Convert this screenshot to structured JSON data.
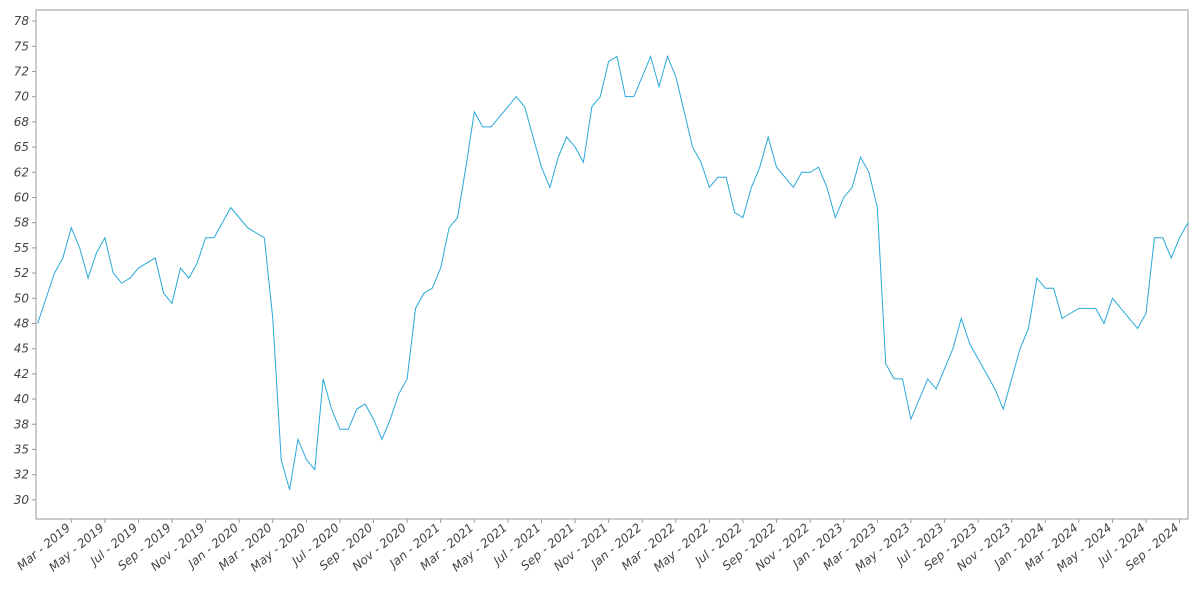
{
  "chart_data": {
    "type": "line",
    "x": [
      0,
      0.5,
      1,
      1.5,
      2,
      2.5,
      3,
      3.5,
      4,
      4.5,
      5,
      5.5,
      6,
      6.5,
      7,
      7.5,
      8,
      8.5,
      9,
      9.5,
      10,
      10.5,
      11,
      11.5,
      12,
      12.5,
      13,
      13.5,
      14,
      14.5,
      15,
      15.5,
      16,
      16.5,
      17,
      17.5,
      18,
      18.5,
      19,
      19.5,
      20,
      20.5,
      21,
      21.5,
      22,
      22.5,
      23,
      23.5,
      24,
      24.5,
      25,
      25.5,
      26,
      26.5,
      27,
      27.5,
      28,
      28.5,
      29,
      29.5,
      30,
      30.5,
      31,
      31.5,
      32,
      32.5,
      33,
      33.5,
      34,
      34.5,
      35,
      35.5,
      36,
      36.5,
      37,
      37.5,
      38,
      38.5,
      39,
      39.5,
      40,
      40.5,
      41,
      41.5,
      42,
      42.5,
      43,
      43.5,
      44,
      44.5,
      45,
      45.5,
      46,
      46.5,
      47,
      47.5,
      48,
      48.5,
      49,
      49.5,
      50,
      50.5,
      51,
      51.5,
      52,
      52.5,
      53,
      53.5,
      54,
      54.5,
      55,
      55.5,
      56,
      56.5,
      57,
      57.5,
      58,
      58.5,
      59,
      59.5,
      60,
      60.5,
      61,
      61.5,
      62,
      62.5,
      63,
      63.5,
      64,
      64.5,
      65,
      65.5,
      66,
      66.5,
      67,
      67.5,
      68,
      68.5
    ],
    "series": [
      {
        "color": "#29a8d8",
        "values": [
          47.5,
          50,
          52.5,
          54,
          57,
          55,
          52,
          54.5,
          56,
          52.5,
          51.5,
          52,
          53,
          53.5,
          54,
          50.5,
          49.5,
          53,
          52,
          53.5,
          56,
          56,
          57.5,
          59,
          58,
          57,
          56.5,
          56,
          48,
          34,
          31,
          36,
          34,
          33,
          42,
          39,
          37,
          37,
          39,
          39.5,
          38,
          36,
          38,
          40.5,
          42,
          49,
          50.5,
          51,
          53,
          57,
          58,
          63,
          68.5,
          67,
          67,
          68,
          69,
          70,
          69,
          66,
          63,
          61,
          64,
          66,
          65,
          63.5,
          69,
          70,
          73.5,
          74,
          70,
          70,
          72,
          74,
          71,
          74,
          72,
          68.5,
          65,
          63.5,
          61,
          62,
          62,
          58.5,
          58,
          61,
          63,
          66,
          63,
          62,
          61,
          62.5,
          62.5,
          63,
          61,
          58,
          60,
          61,
          64,
          62.5,
          59,
          43.5,
          42,
          42,
          38,
          40,
          42,
          41,
          43,
          45,
          48,
          45.5,
          44,
          42.5,
          41,
          39,
          42,
          45,
          47,
          52,
          51,
          51,
          48,
          48.5,
          49,
          49,
          49,
          47.5,
          50,
          49,
          48,
          47,
          48.5,
          56,
          56,
          54,
          56,
          57.5
        ]
      }
    ],
    "xlim": [
      -0.1,
      68.5
    ],
    "xticks": [
      {
        "value": 2,
        "label": "Mar - 2019"
      },
      {
        "value": 4,
        "label": "May - 2019"
      },
      {
        "value": 6,
        "label": "Jul - 2019"
      },
      {
        "value": 8,
        "label": "Sep - 2019"
      },
      {
        "value": 10,
        "label": "Nov - 2019"
      },
      {
        "value": 12,
        "label": "Jan - 2020"
      },
      {
        "value": 14,
        "label": "Mar - 2020"
      },
      {
        "value": 16,
        "label": "May - 2020"
      },
      {
        "value": 18,
        "label": "Jul - 2020"
      },
      {
        "value": 20,
        "label": "Sep - 2020"
      },
      {
        "value": 22,
        "label": "Nov - 2020"
      },
      {
        "value": 24,
        "label": "Jan - 2021"
      },
      {
        "value": 26,
        "label": "Mar - 2021"
      },
      {
        "value": 28,
        "label": "May - 2021"
      },
      {
        "value": 30,
        "label": "Jul - 2021"
      },
      {
        "value": 32,
        "label": "Sep - 2021"
      },
      {
        "value": 34,
        "label": "Nov - 2021"
      },
      {
        "value": 36,
        "label": "Jan - 2022"
      },
      {
        "value": 38,
        "label": "Mar - 2022"
      },
      {
        "value": 40,
        "label": "May - 2022"
      },
      {
        "value": 42,
        "label": "Jul - 2022"
      },
      {
        "value": 44,
        "label": "Sep - 2022"
      },
      {
        "value": 46,
        "label": "Nov - 2022"
      },
      {
        "value": 48,
        "label": "Jan - 2023"
      },
      {
        "value": 50,
        "label": "Mar - 2023"
      },
      {
        "value": 52,
        "label": "May - 2023"
      },
      {
        "value": 54,
        "label": "Jul - 2023"
      },
      {
        "value": 56,
        "label": "Sep - 2023"
      },
      {
        "value": 58,
        "label": "Nov - 2023"
      },
      {
        "value": 60,
        "label": "Jan - 2024"
      },
      {
        "value": 62,
        "label": "Mar - 2024"
      },
      {
        "value": 64,
        "label": "May - 2024"
      },
      {
        "value": 66,
        "label": "Jul - 2024"
      },
      {
        "value": 68,
        "label": "Sep - 2024"
      }
    ],
    "ylim": [
      28.1,
      78.6
    ],
    "yticks": [
      30,
      {
        "value": 32.5,
        "label": "32"
      },
      35,
      {
        "value": 37.5,
        "label": "38"
      },
      40,
      {
        "value": 42.5,
        "label": "42"
      },
      45,
      {
        "value": 47.5,
        "label": "48"
      },
      50,
      {
        "value": 52.5,
        "label": "52"
      },
      55,
      {
        "value": 57.5,
        "label": "58"
      },
      60,
      {
        "value": 62.5,
        "label": "62"
      },
      65,
      {
        "value": 67.5,
        "label": "68"
      },
      70,
      {
        "value": 72.5,
        "label": "72"
      },
      75,
      {
        "value": 77.5,
        "label": "78"
      }
    ]
  }
}
